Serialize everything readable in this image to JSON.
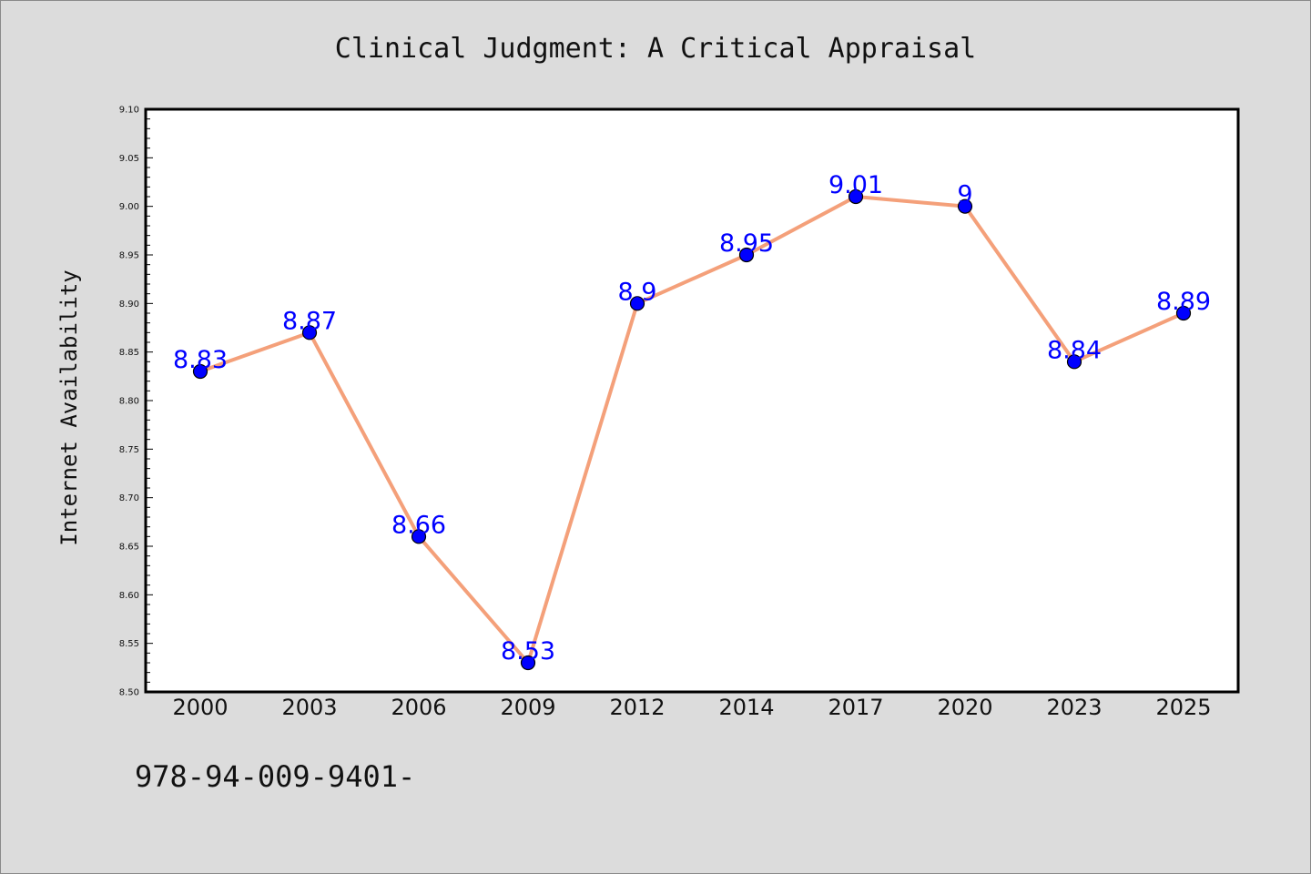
{
  "chart_data": {
    "type": "line",
    "title": "Clinical Judgment: A Critical Appraisal",
    "xlabel": "",
    "ylabel": "Internet Availability",
    "categories": [
      "2000",
      "2003",
      "2006",
      "2009",
      "2012",
      "2014",
      "2017",
      "2020",
      "2023",
      "2025"
    ],
    "series": [
      {
        "values": [
          8.83,
          8.87,
          8.66,
          8.53,
          8.9,
          8.95,
          9.01,
          9.0,
          8.84,
          8.89
        ],
        "data_labels": [
          "8.83",
          "8.87",
          "8.66",
          "8.53",
          "8.9",
          "8.95",
          "9.01",
          "9",
          "8.84",
          "8.89"
        ],
        "line_color": "#f4a07a",
        "marker_color": "#0000ff"
      }
    ],
    "ylim": [
      8.5,
      9.1
    ],
    "yticks": [
      "8.50",
      "8.55",
      "8.60",
      "8.65",
      "8.70",
      "8.75",
      "8.80",
      "8.85",
      "8.90",
      "8.95",
      "9.00",
      "9.05",
      "9.10"
    ],
    "grid": false,
    "legend": "none",
    "background_color": "#dcdcdc",
    "plot_background_color": "#ffffff",
    "label_color": "#0000ff"
  },
  "footer_text": "978-94-009-9401-"
}
